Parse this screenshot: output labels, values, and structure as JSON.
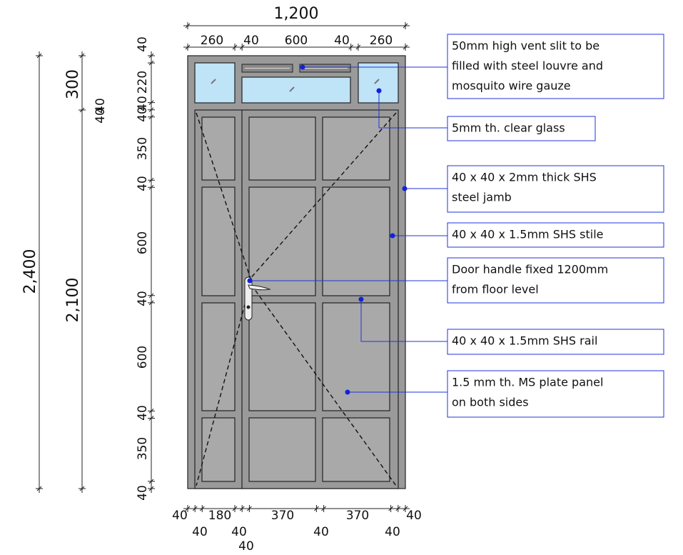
{
  "dimensions": {
    "overall_width": "1,200",
    "top": [
      "260",
      "40",
      "600",
      "40",
      "260"
    ],
    "overall_height": "2,400",
    "door_height": "2,100",
    "transom_height": "300",
    "transom_bar": "40",
    "transom_bar_lower": "40",
    "left": [
      "40",
      "220",
      "40",
      "40",
      "350",
      "40",
      "600",
      "40",
      "600",
      "40",
      "350",
      "40"
    ],
    "bottom": [
      "40",
      "40",
      "180",
      "40",
      "40",
      "370",
      "40",
      "370",
      "40",
      "40"
    ]
  },
  "callouts": [
    {
      "lines": [
        "50mm high vent slit to be",
        "filled with steel louvre and",
        "mosquito wire gauze"
      ]
    },
    {
      "lines": [
        "5mm th. clear glass"
      ]
    },
    {
      "lines": [
        "40 x 40 x 2mm thick SHS",
        "steel jamb"
      ]
    },
    {
      "lines": [
        "40 x 40 x 1.5mm SHS stile"
      ]
    },
    {
      "lines": [
        "Door handle fixed 1200mm",
        "from floor level"
      ]
    },
    {
      "lines": [
        "40 x 40 x 1.5mm SHS rail"
      ]
    },
    {
      "lines": [
        "1.5 mm th. MS plate panel",
        "on both sides"
      ]
    }
  ]
}
